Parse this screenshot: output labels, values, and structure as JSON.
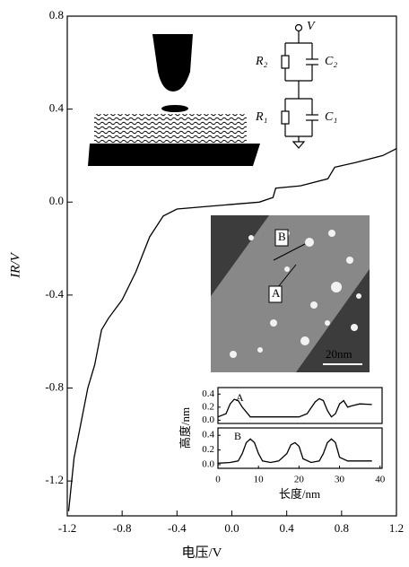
{
  "chart_data": [
    {
      "type": "line",
      "xlabel": "电压/V",
      "ylabel": "IR/V",
      "xlim": [
        -1.2,
        1.2
      ],
      "ylim": [
        -1.35,
        0.8
      ],
      "xticks": [
        -1.2,
        -0.8,
        -0.4,
        {
          "value": 0,
          "label": "0.0"
        },
        0.4,
        0.8,
        1.2
      ],
      "yticks": [
        0.8,
        0.4,
        {
          "value": 0,
          "label": "0.0"
        },
        -0.4,
        -0.8,
        -1.2
      ],
      "annotations": [
        "V",
        "R₂",
        "C₂",
        "R₁",
        "C₁",
        "B",
        "A",
        "20nm"
      ],
      "series": [
        {
          "color": "#000000",
          "x": [
            -1.19,
            -1.15,
            -1.1,
            -1.05,
            -1.0,
            -0.95,
            -0.9,
            -0.8,
            -0.7,
            -0.6,
            -0.5,
            -0.4,
            -0.2,
            0.0,
            0.2,
            0.3,
            0.32,
            0.5,
            0.7,
            0.75,
            0.9,
            1.1,
            1.2
          ],
          "values": [
            -1.33,
            -1.1,
            -0.95,
            -0.8,
            -0.7,
            -0.55,
            -0.5,
            -0.42,
            -0.3,
            -0.15,
            -0.06,
            -0.03,
            -0.02,
            -0.01,
            0.0,
            0.02,
            0.06,
            0.07,
            0.1,
            0.15,
            0.17,
            0.2,
            0.23
          ]
        }
      ]
    },
    {
      "type": "line",
      "label": "A",
      "ylabel": "高度/nm",
      "xlim": [
        0,
        40.5
      ],
      "ylim": [
        -0.05,
        0.5
      ],
      "yticks": [
        0.4,
        0.2,
        {
          "value": 0,
          "label": "0.0"
        }
      ],
      "series": [
        {
          "color": "#000000",
          "x": [
            0,
            2,
            3,
            4,
            5,
            6,
            8,
            10,
            15,
            20,
            22,
            24,
            25,
            26,
            27,
            28,
            29,
            30,
            31,
            32,
            33,
            35,
            38
          ],
          "values": [
            0.05,
            0.1,
            0.25,
            0.32,
            0.3,
            0.2,
            0.05,
            0.05,
            0.05,
            0.05,
            0.1,
            0.28,
            0.33,
            0.3,
            0.15,
            0.05,
            0.1,
            0.25,
            0.3,
            0.2,
            0.22,
            0.25,
            0.24
          ]
        }
      ]
    },
    {
      "type": "line",
      "label": "B",
      "xlabel": "长度/nm",
      "xlim": [
        0,
        40.5
      ],
      "ylim": [
        -0.05,
        0.5
      ],
      "xticks": [
        0,
        10,
        20,
        30,
        40
      ],
      "yticks": [
        0.4,
        0.2,
        {
          "value": 0,
          "label": "0.0"
        }
      ],
      "series": [
        {
          "color": "#000000",
          "x": [
            0,
            3,
            5,
            6,
            7,
            8,
            9,
            10,
            11,
            13,
            15,
            17,
            18,
            19,
            20,
            21,
            23,
            25,
            26,
            27,
            28,
            29,
            30,
            32,
            35,
            38
          ],
          "values": [
            0.02,
            0.03,
            0.05,
            0.15,
            0.3,
            0.35,
            0.3,
            0.15,
            0.05,
            0.03,
            0.05,
            0.15,
            0.27,
            0.3,
            0.25,
            0.08,
            0.03,
            0.05,
            0.15,
            0.3,
            0.35,
            0.3,
            0.1,
            0.05,
            0.05,
            0.05
          ]
        }
      ]
    }
  ]
}
